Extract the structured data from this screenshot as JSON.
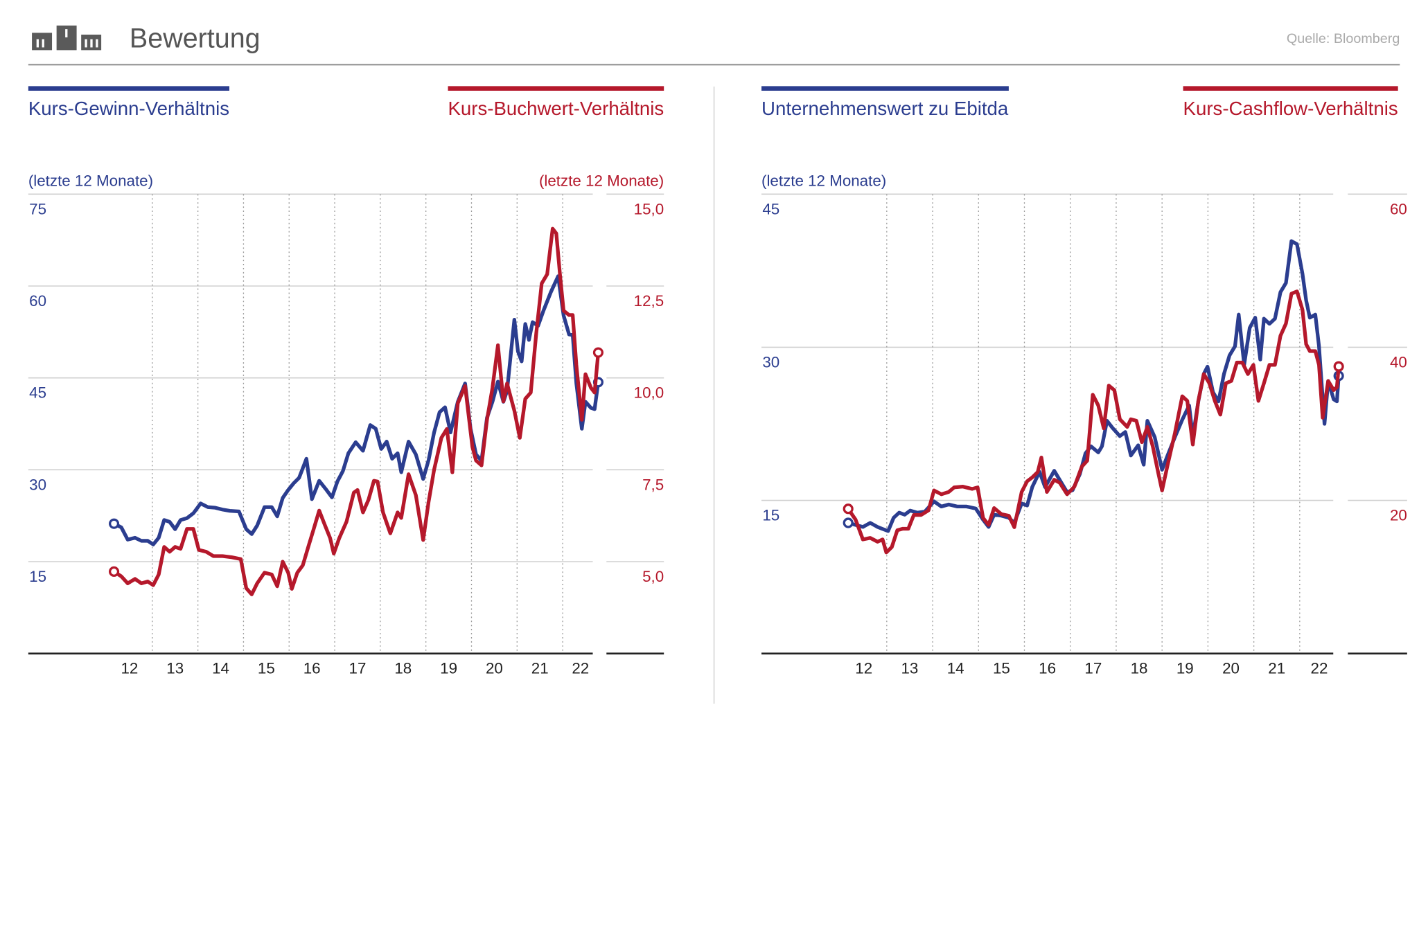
{
  "header": {
    "title": "Bewertung",
    "source": "Quelle: Bloomberg"
  },
  "chart_data": [
    {
      "type": "line",
      "y_label": "(letzte 12 Monate)",
      "y2_label": "(letzte 12 Monate)",
      "xlim": [
        10.28,
        22.78
      ],
      "xticks": [
        12,
        13,
        14,
        15,
        16,
        17,
        18,
        19,
        20,
        21,
        22
      ],
      "grid": true,
      "ylim": [
        0,
        75
      ],
      "yticks": [
        15,
        30,
        45,
        60,
        75
      ],
      "y2lim": [
        2.5,
        15
      ],
      "y2ticks": [
        {
          "value": 5,
          "label": "5,0"
        },
        {
          "value": 7.5,
          "label": "7,5"
        },
        {
          "value": 10,
          "label": "10,0"
        },
        {
          "value": 12.5,
          "label": "12,5"
        },
        {
          "value": 15,
          "label": "15,0"
        }
      ],
      "series": [
        {
          "name": "Kurs-Gewinn-Verhältnis",
          "color": "#2b3d8f",
          "x": [
            12.16,
            12.32,
            12.46,
            12.62,
            12.76,
            12.9,
            13.02,
            13.14,
            13.26,
            13.38,
            13.5,
            13.62,
            13.76,
            13.9,
            14.06,
            14.22,
            14.38,
            14.54,
            14.7,
            14.9,
            15.06,
            15.18,
            15.3,
            15.46,
            15.62,
            15.74,
            15.86,
            15.98,
            16.1,
            16.22,
            16.38,
            16.5,
            16.66,
            16.82,
            16.94,
            17.06,
            17.18,
            17.3,
            17.46,
            17.62,
            17.78,
            17.9,
            18.02,
            18.14,
            18.26,
            18.38,
            18.46,
            18.62,
            18.78,
            18.94,
            19.06,
            19.18,
            19.3,
            19.42,
            19.54,
            19.7,
            19.86,
            19.98,
            20.1,
            20.22,
            20.34,
            20.46,
            20.58,
            20.7,
            20.78,
            20.94,
            21.02,
            21.1,
            21.18,
            21.26,
            21.34,
            21.46,
            21.58,
            21.74,
            21.9,
            22.02,
            22.14,
            22.22,
            22.3,
            22.42,
            22.5,
            22.62,
            22.7,
            22.78
          ],
          "values": [
            21.2,
            20.6,
            18.6,
            18.9,
            18.4,
            18.4,
            17.8,
            18.9,
            21.8,
            21.5,
            20.3,
            21.8,
            22.1,
            22.9,
            24.5,
            23.9,
            23.8,
            23.5,
            23.3,
            23.2,
            20.3,
            19.5,
            20.9,
            23.9,
            23.9,
            22.4,
            25.4,
            26.7,
            27.8,
            28.7,
            31.8,
            25.2,
            28.2,
            26.7,
            25.5,
            28.1,
            29.8,
            32.7,
            34.5,
            33.1,
            37.3,
            36.7,
            33.4,
            34.6,
            31.8,
            32.7,
            29.6,
            34.6,
            32.5,
            28.5,
            31.6,
            36.1,
            39.4,
            40.2,
            36.1,
            41.1,
            44.1,
            36.7,
            32.5,
            31.5,
            38.5,
            41.1,
            44.4,
            41.1,
            42.9,
            54.5,
            49.3,
            47.7,
            53.8,
            51.2,
            54.1,
            53.5,
            56.0,
            59.0,
            61.6,
            55.2,
            52.1,
            52.0,
            44.1,
            36.7,
            41.1,
            40.1,
            39.9,
            44.3
          ]
        },
        {
          "name": "Kurs-Buchwert-Verhältnis",
          "color": "#b5182b",
          "axis": "y2",
          "x": [
            12.16,
            12.32,
            12.46,
            12.62,
            12.76,
            12.9,
            13.02,
            13.14,
            13.26,
            13.38,
            13.5,
            13.62,
            13.76,
            13.9,
            14.02,
            14.18,
            14.34,
            14.54,
            14.74,
            14.94,
            15.06,
            15.18,
            15.3,
            15.46,
            15.62,
            15.74,
            15.86,
            15.98,
            16.06,
            16.18,
            16.3,
            16.42,
            16.54,
            16.66,
            16.78,
            16.9,
            16.98,
            17.1,
            17.26,
            17.42,
            17.5,
            17.62,
            17.74,
            17.86,
            17.94,
            18.06,
            18.22,
            18.38,
            18.46,
            18.62,
            18.78,
            18.94,
            19.06,
            19.18,
            19.34,
            19.46,
            19.58,
            19.7,
            19.86,
            20.02,
            20.1,
            20.22,
            20.34,
            20.46,
            20.58,
            20.7,
            20.78,
            20.94,
            21.06,
            21.18,
            21.3,
            21.42,
            21.54,
            21.66,
            21.78,
            21.86,
            21.94,
            22.02,
            22.14,
            22.22,
            22.3,
            22.42,
            22.5,
            22.62,
            22.7,
            22.78
          ],
          "values": [
            4.73,
            4.6,
            4.41,
            4.53,
            4.41,
            4.46,
            4.36,
            4.65,
            5.4,
            5.27,
            5.4,
            5.35,
            5.89,
            5.89,
            5.32,
            5.27,
            5.15,
            5.15,
            5.12,
            5.07,
            4.28,
            4.11,
            4.41,
            4.7,
            4.65,
            4.33,
            5.0,
            4.7,
            4.26,
            4.7,
            4.9,
            5.4,
            5.89,
            6.39,
            6.01,
            5.64,
            5.22,
            5.64,
            6.09,
            6.88,
            6.95,
            6.34,
            6.68,
            7.2,
            7.18,
            6.34,
            5.77,
            6.34,
            6.19,
            7.38,
            6.81,
            5.59,
            6.63,
            7.5,
            8.37,
            8.61,
            7.43,
            9.31,
            9.78,
            8.12,
            7.75,
            7.62,
            8.86,
            9.73,
            10.89,
            9.36,
            9.85,
            9.11,
            8.37,
            9.43,
            9.6,
            11.21,
            12.57,
            12.82,
            14.06,
            13.93,
            12.82,
            11.83,
            11.71,
            11.71,
            10.35,
            8.86,
            10.1,
            9.73,
            9.6,
            10.69
          ]
        }
      ]
    },
    {
      "type": "line",
      "y_label": "(letzte 12 Monate)",
      "xlim": [
        10.27,
        22.85
      ],
      "xticks": [
        12,
        13,
        14,
        15,
        16,
        17,
        18,
        19,
        20,
        21,
        22
      ],
      "grid": true,
      "ylim": [
        0,
        45
      ],
      "yticks": [
        15,
        30,
        45
      ],
      "y2lim": [
        0,
        60
      ],
      "y2ticks": [
        20,
        40,
        60
      ],
      "series": [
        {
          "name": "Unternehmenswert zu Ebitda",
          "color": "#2b3d8f",
          "x": [
            12.16,
            12.32,
            12.48,
            12.64,
            12.8,
            12.91,
            13.03,
            13.15,
            13.27,
            13.39,
            13.51,
            13.67,
            13.83,
            14.03,
            14.19,
            14.35,
            14.54,
            14.74,
            14.94,
            15.1,
            15.22,
            15.34,
            15.5,
            15.66,
            15.78,
            15.94,
            16.06,
            16.17,
            16.33,
            16.45,
            16.65,
            16.81,
            16.93,
            17.05,
            17.21,
            17.33,
            17.45,
            17.61,
            17.69,
            17.8,
            17.92,
            18.08,
            18.2,
            18.32,
            18.48,
            18.6,
            18.68,
            18.84,
            19.0,
            19.12,
            19.28,
            19.44,
            19.59,
            19.67,
            19.79,
            19.91,
            19.99,
            20.11,
            20.23,
            20.35,
            20.47,
            20.59,
            20.67,
            20.79,
            20.91,
            21.03,
            21.14,
            21.22,
            21.34,
            21.46,
            21.58,
            21.7,
            21.82,
            21.94,
            22.06,
            22.14,
            22.22,
            22.34,
            22.42,
            22.54,
            22.62,
            22.74,
            22.81,
            22.85
          ],
          "values": [
            12.8,
            12.6,
            12.4,
            12.8,
            12.4,
            12.2,
            12.0,
            13.3,
            13.8,
            13.6,
            14.0,
            13.8,
            13.9,
            14.9,
            14.4,
            14.6,
            14.4,
            14.4,
            14.2,
            13.1,
            12.4,
            13.6,
            13.5,
            13.3,
            12.8,
            14.7,
            14.5,
            16.3,
            17.8,
            16.3,
            17.9,
            16.7,
            15.8,
            16.0,
            17.6,
            19.6,
            20.3,
            19.7,
            20.3,
            22.8,
            22.1,
            21.3,
            21.7,
            19.4,
            20.4,
            18.5,
            22.8,
            21.2,
            18.0,
            19.4,
            21.2,
            22.9,
            24.3,
            21.2,
            24.7,
            27.4,
            28.1,
            25.6,
            24.7,
            27.4,
            29.2,
            30.1,
            33.2,
            28.3,
            31.9,
            32.9,
            28.8,
            32.8,
            32.3,
            32.8,
            35.4,
            36.3,
            40.4,
            40.1,
            37.2,
            34.6,
            32.9,
            33.2,
            30.1,
            22.5,
            26.7,
            24.9,
            24.7,
            27.2
          ]
        },
        {
          "name": "Kurs-Cashflow-Verhältnis",
          "color": "#b5182b",
          "axis": "y2",
          "x": [
            12.16,
            12.32,
            12.48,
            12.64,
            12.8,
            12.91,
            12.99,
            13.11,
            13.23,
            13.35,
            13.47,
            13.59,
            13.75,
            13.91,
            14.03,
            14.19,
            14.35,
            14.47,
            14.66,
            14.86,
            14.98,
            15.1,
            15.22,
            15.34,
            15.5,
            15.66,
            15.78,
            15.94,
            16.06,
            16.17,
            16.29,
            16.37,
            16.49,
            16.65,
            16.77,
            16.93,
            17.09,
            17.25,
            17.37,
            17.49,
            17.61,
            17.73,
            17.84,
            17.96,
            18.08,
            18.24,
            18.32,
            18.44,
            18.56,
            18.68,
            18.8,
            18.92,
            19.0,
            19.12,
            19.28,
            19.44,
            19.55,
            19.67,
            19.79,
            19.91,
            20.03,
            20.15,
            20.27,
            20.39,
            20.51,
            20.63,
            20.75,
            20.87,
            20.99,
            21.1,
            21.22,
            21.34,
            21.46,
            21.58,
            21.7,
            21.82,
            21.94,
            22.06,
            22.14,
            22.22,
            22.34,
            22.42,
            22.5,
            22.62,
            22.74,
            22.81,
            22.85
          ],
          "values": [
            18.9,
            17.5,
            14.9,
            15.1,
            14.6,
            14.9,
            13.2,
            13.9,
            16.1,
            16.3,
            16.3,
            18.1,
            18.1,
            18.7,
            21.3,
            20.8,
            21.1,
            21.7,
            21.8,
            21.5,
            21.7,
            17.7,
            16.8,
            19.0,
            18.2,
            18.0,
            16.5,
            21.1,
            22.5,
            23.0,
            23.7,
            25.6,
            21.1,
            22.7,
            22.3,
            20.8,
            21.8,
            24.4,
            25.2,
            33.8,
            32.4,
            29.4,
            35.0,
            34.4,
            30.6,
            29.6,
            30.6,
            30.4,
            27.6,
            29.6,
            27.0,
            23.5,
            21.3,
            24.6,
            28.8,
            33.6,
            33.0,
            27.3,
            33.0,
            36.5,
            35.3,
            33.0,
            31.2,
            35.3,
            35.6,
            38.0,
            38.0,
            36.5,
            37.7,
            33.0,
            35.3,
            37.7,
            37.7,
            41.5,
            43.1,
            47.0,
            47.3,
            44.9,
            40.4,
            39.5,
            39.5,
            37.7,
            30.8,
            35.6,
            34.4,
            34.8,
            37.5
          ]
        }
      ]
    }
  ]
}
